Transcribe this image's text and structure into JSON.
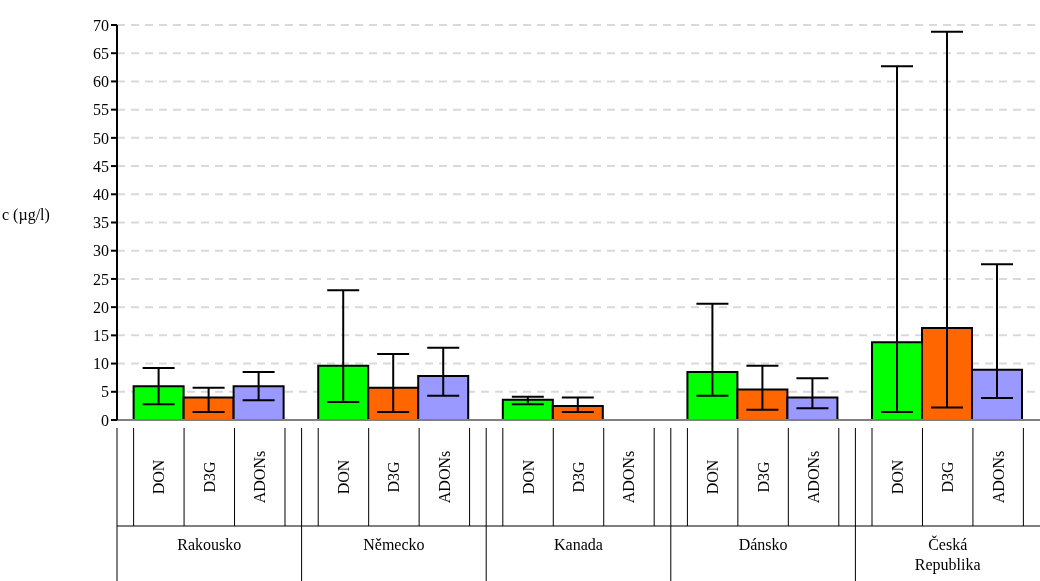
{
  "chart_data": {
    "type": "bar",
    "ylabel": "c (µg/l)",
    "categories": [
      "Rakousko",
      "Německo",
      "Kanada",
      "Dánsko",
      "Česká Republika"
    ],
    "series": [
      {
        "name": "DON",
        "color": "#00ff00",
        "values": [
          6.0,
          9.6,
          3.6,
          8.5,
          13.8
        ],
        "errors": [
          [
            2.8,
            9.2
          ],
          [
            3.2,
            23.0
          ],
          [
            2.8,
            4.1
          ],
          [
            4.3,
            20.6
          ],
          [
            1.4,
            62.7
          ]
        ]
      },
      {
        "name": "D3G",
        "color": "#ff6600",
        "values": [
          4.0,
          5.7,
          2.5,
          5.4,
          16.3
        ],
        "errors": [
          [
            1.4,
            5.7
          ],
          [
            1.4,
            11.7
          ],
          [
            1.4,
            4.0
          ],
          [
            1.8,
            9.6
          ],
          [
            2.2,
            68.8
          ]
        ]
      },
      {
        "name": "ADONs",
        "color": "#9999ff",
        "values": [
          6.0,
          7.8,
          0,
          4.0,
          8.9
        ],
        "errors": [
          [
            3.5,
            8.5
          ],
          [
            4.3,
            12.8
          ],
          null,
          [
            2.1,
            7.4
          ],
          [
            3.9,
            27.6
          ]
        ]
      }
    ],
    "ylim": [
      0,
      70
    ],
    "yticks": [
      0,
      5,
      10,
      15,
      20,
      25,
      30,
      35,
      40,
      45,
      50,
      55,
      60,
      65,
      70
    ],
    "grid": "y",
    "legend": false
  }
}
